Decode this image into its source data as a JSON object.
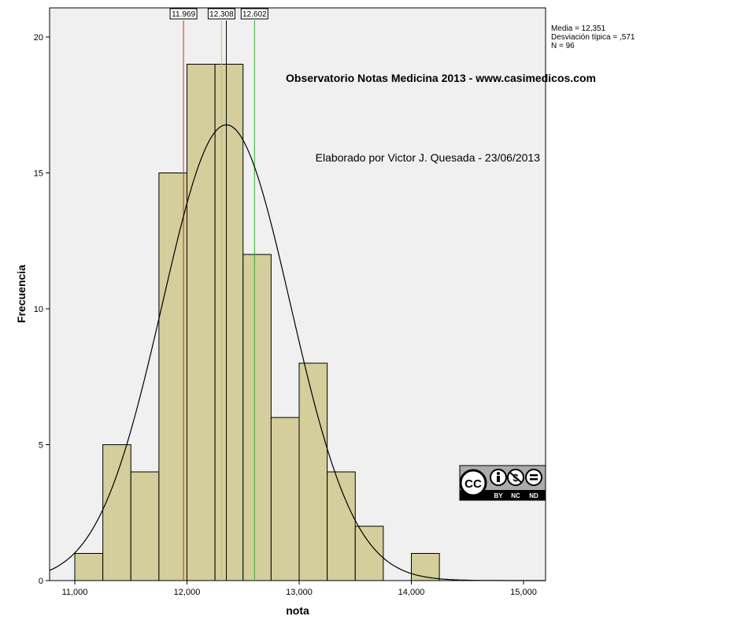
{
  "chart_data": {
    "type": "bar",
    "xlabel": "nota",
    "ylabel": "Frecuencia",
    "xlim": [
      10.75,
      15.25
    ],
    "ylim": [
      0,
      21
    ],
    "x_ticks": [
      11,
      12,
      13,
      14,
      15
    ],
    "x_tick_labels": [
      "11,000",
      "12,000",
      "13,000",
      "14,000",
      "15,000"
    ],
    "y_ticks": [
      0,
      5,
      10,
      15,
      20
    ],
    "y_tick_labels": [
      "0",
      "5",
      "10",
      "15",
      "20"
    ],
    "bin_width": 0.25,
    "bins": [
      {
        "start": 11.0,
        "count": 1
      },
      {
        "start": 11.25,
        "count": 5
      },
      {
        "start": 11.5,
        "count": 4
      },
      {
        "start": 11.75,
        "count": 15
      },
      {
        "start": 12.0,
        "count": 19
      },
      {
        "start": 12.25,
        "count": 19
      },
      {
        "start": 12.5,
        "count": 12
      },
      {
        "start": 12.75,
        "count": 6
      },
      {
        "start": 13.0,
        "count": 8
      },
      {
        "start": 13.25,
        "count": 4
      },
      {
        "start": 13.5,
        "count": 2
      },
      {
        "start": 13.75,
        "count": 0
      },
      {
        "start": 14.0,
        "count": 1
      }
    ],
    "normal_curve": {
      "mean": 12.351,
      "sd": 0.571,
      "n": 96
    },
    "reference_lines": [
      {
        "value": 11.969,
        "label": "11.969",
        "color": "#cc3300"
      },
      {
        "value": 12.308,
        "label": "12.308",
        "color": "#e8b84a"
      },
      {
        "value": 12.351,
        "label": "",
        "color": "#000000"
      },
      {
        "value": 12.602,
        "label": "12.602",
        "color": "#33aa33"
      }
    ],
    "stats": {
      "mean_text": "Media = 12,351",
      "sd_text": "Desviación típica = ,571",
      "n_text": "N = 96"
    },
    "annotations": {
      "title": "Observatorio Notas Medicina 2013 - www.casimedicos.com",
      "subtitle": "Elaborado por Victor J. Quesada - 23/06/2013"
    },
    "colors": {
      "plot_background": "#f0f0f0",
      "bar_fill": "#d3ce9b",
      "bar_stroke": "#000000",
      "curve": "#000000"
    }
  },
  "license_badge": {
    "cc": "CC",
    "labels": [
      "BY",
      "NC",
      "ND"
    ]
  }
}
